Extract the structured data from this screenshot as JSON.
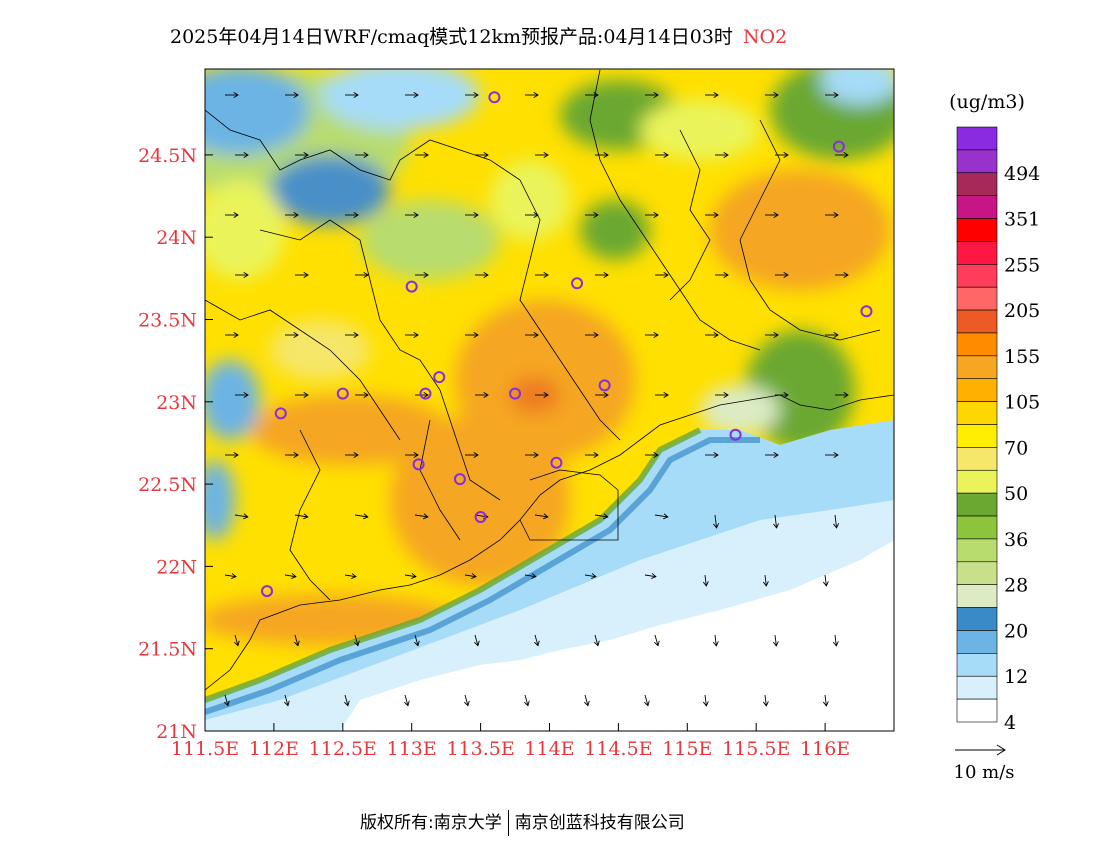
{
  "title": {
    "main": "2025年04月14日WRF/cmaq模式12km预报产品:04月14日03时",
    "species": "NO2"
  },
  "colors": {
    "axis_label": "#e8383d",
    "species": "#e8383d"
  },
  "map": {
    "lon_labels": [
      "111.5E",
      "112E",
      "112.5E",
      "113E",
      "113.5E",
      "114E",
      "114.5E",
      "115E",
      "115.5E",
      "116E"
    ],
    "lat_labels": [
      "21N",
      "21.5N",
      "22N",
      "22.5N",
      "23N",
      "23.5N",
      "24N",
      "24.5N"
    ],
    "stations": [
      {
        "lon": 113.6,
        "lat": 24.85
      },
      {
        "lon": 116.1,
        "lat": 24.55
      },
      {
        "lon": 113.0,
        "lat": 23.7
      },
      {
        "lon": 114.2,
        "lat": 23.72
      },
      {
        "lon": 116.3,
        "lat": 23.55
      },
      {
        "lon": 113.2,
        "lat": 23.15
      },
      {
        "lon": 112.5,
        "lat": 23.05
      },
      {
        "lon": 113.1,
        "lat": 23.05
      },
      {
        "lon": 113.75,
        "lat": 23.05
      },
      {
        "lon": 114.4,
        "lat": 23.1
      },
      {
        "lon": 112.05,
        "lat": 22.93
      },
      {
        "lon": 115.35,
        "lat": 22.8
      },
      {
        "lon": 113.05,
        "lat": 22.62
      },
      {
        "lon": 113.35,
        "lat": 22.53
      },
      {
        "lon": 114.05,
        "lat": 22.63
      },
      {
        "lon": 113.5,
        "lat": 22.3
      },
      {
        "lon": 111.95,
        "lat": 21.85
      }
    ]
  },
  "legend": {
    "unit": "(ug/m3)",
    "labels": [
      "494",
      "351",
      "255",
      "205",
      "155",
      "105",
      "70",
      "50",
      "36",
      "28",
      "20",
      "12",
      "4"
    ],
    "colors": [
      "#8a2be2",
      "#9932cc",
      "#a52a5a",
      "#c71585",
      "#ff0000",
      "#ff1744",
      "#ff3c5a",
      "#ff6666",
      "#ee5a24",
      "#ff8c00",
      "#f5a623",
      "#ffb000",
      "#ffd700",
      "#ffee00",
      "#f6e66a",
      "#eaf45a",
      "#6aa832",
      "#8cc43c",
      "#b8dc6e",
      "#c8e08a",
      "#dcebc4",
      "#3a8ac8",
      "#6cb4e4",
      "#a6dcf8",
      "#d8f0fc",
      "#ffffff"
    ],
    "wind_label": "10 m/s"
  },
  "copyright": {
    "owner": "版权所有:南京大学",
    "company": "南京创蓝科技有限公司"
  }
}
